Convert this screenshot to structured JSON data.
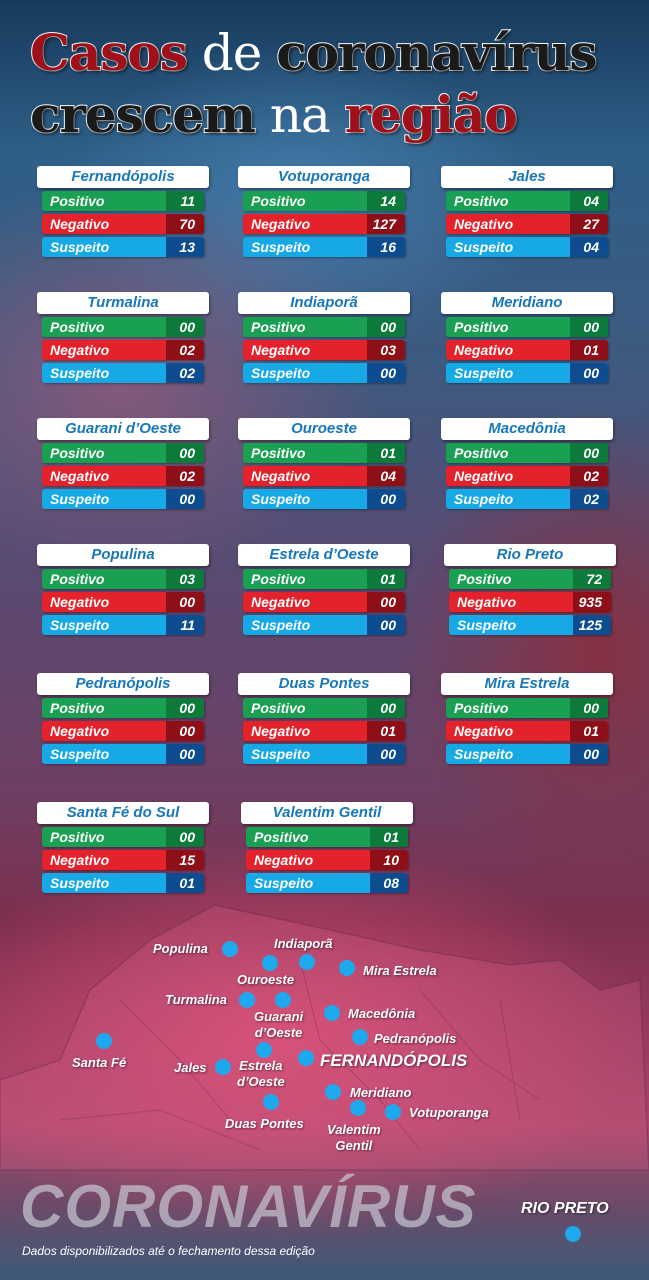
{
  "headline": {
    "w1": "Casos",
    "w2": "de",
    "w3": "coronavírus",
    "w4": "crescem",
    "w5": "na",
    "w6": "região"
  },
  "row_labels": {
    "positive": "Positivo",
    "negative": "Negativo",
    "suspect": "Suspeito"
  },
  "colors": {
    "positive": "#1aa052",
    "negative": "#e3222c",
    "suspect": "#16a9e6",
    "title_red": "#a0101a",
    "map_dot": "#1ea8ee"
  },
  "cities": [
    {
      "name": "Fernandópolis",
      "positivo": "11",
      "negativo": "70",
      "suspeito": "13"
    },
    {
      "name": "Votuporanga",
      "positivo": "14",
      "negativo": "127",
      "suspeito": "16"
    },
    {
      "name": "Jales",
      "positivo": "04",
      "negativo": "27",
      "suspeito": "04"
    },
    {
      "name": "Turmalina",
      "positivo": "00",
      "negativo": "02",
      "suspeito": "02"
    },
    {
      "name": "Indiaporã",
      "positivo": "00",
      "negativo": "03",
      "suspeito": "00"
    },
    {
      "name": "Meridiano",
      "positivo": "00",
      "negativo": "01",
      "suspeito": "00"
    },
    {
      "name": "Guarani d’Oeste",
      "positivo": "00",
      "negativo": "02",
      "suspeito": "00"
    },
    {
      "name": "Ouroeste",
      "positivo": "01",
      "negativo": "04",
      "suspeito": "00"
    },
    {
      "name": "Macedônia",
      "positivo": "00",
      "negativo": "02",
      "suspeito": "02"
    },
    {
      "name": "Populina",
      "positivo": "03",
      "negativo": "00",
      "suspeito": "11"
    },
    {
      "name": "Estrela d’Oeste",
      "positivo": "01",
      "negativo": "00",
      "suspeito": "00"
    },
    {
      "name": "Rio Preto",
      "positivo": "72",
      "negativo": "935",
      "suspeito": "125"
    },
    {
      "name": "Pedranópolis",
      "positivo": "00",
      "negativo": "00",
      "suspeito": "00"
    },
    {
      "name": "Duas Pontes",
      "positivo": "00",
      "negativo": "01",
      "suspeito": "00"
    },
    {
      "name": "Mira Estrela",
      "positivo": "00",
      "negativo": "01",
      "suspeito": "00"
    },
    {
      "name": "Santa Fé do Sul",
      "positivo": "00",
      "negativo": "15",
      "suspeito": "01"
    },
    {
      "name": "Valentim Gentil",
      "positivo": "01",
      "negativo": "10",
      "suspeito": "08"
    }
  ],
  "map": {
    "labels": [
      "Populina",
      "Indiaporã",
      "Ouroeste",
      "Mira Estrela",
      "Turmalina",
      "Guarani\nd’Oeste",
      "Macedônia",
      "Pedranópolis",
      "Santa Fé",
      "Jales",
      "Estrela\nd’Oeste",
      "FERNANDÓPOLIS",
      "Meridiano",
      "Valentim\nGentil",
      "Votuporanga",
      "Duas Pontes",
      "RIO PRETO"
    ]
  },
  "footer": {
    "brand": "CORONAVÍRUS",
    "note": "Dados disponibilizados até o fechamento dessa edição"
  }
}
